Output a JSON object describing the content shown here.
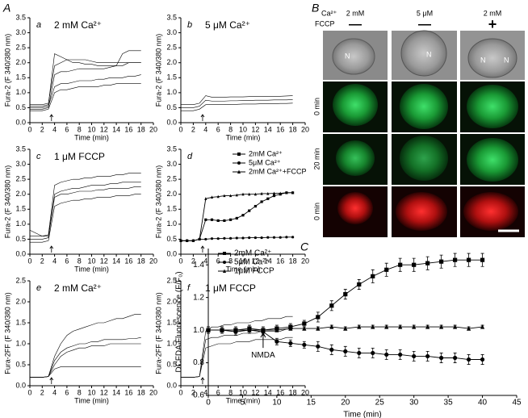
{
  "figure_labels": [
    "A",
    "B",
    "C"
  ],
  "micrograph": {
    "ca_label": "Ca²⁺",
    "conditions": [
      "2 mM",
      "5 μM",
      "2 mM"
    ],
    "fccp_label": "FCCP",
    "fccp": [
      "—",
      "—",
      "+"
    ],
    "row_labels": [
      "0 min",
      "20 min",
      "0 min"
    ],
    "nuclei": [
      "N",
      "N",
      "N",
      "N"
    ]
  },
  "chart_data": [
    {
      "type": "line",
      "label": "a",
      "title": "2 mM Ca²⁺",
      "x_label": "Time (min)",
      "y_label": "Fura-2 (F 340/380 nm)",
      "x": [
        0,
        1,
        2,
        3,
        4,
        5,
        6,
        7,
        8,
        9,
        10,
        11,
        12,
        13,
        14,
        15,
        16,
        17,
        18
      ],
      "xlim": [
        0,
        20
      ],
      "xticks": [
        0,
        2,
        4,
        6,
        8,
        10,
        12,
        14,
        16,
        18,
        20
      ],
      "ylim": [
        0,
        3.5
      ],
      "yticks": [
        {
          "value": 0,
          "label": "0.0"
        },
        0.5,
        {
          "value": 1,
          "label": "1.0"
        },
        1.5,
        {
          "value": 2,
          "label": "2.0"
        },
        2.5,
        {
          "value": 3,
          "label": "3.0"
        },
        3.5
      ],
      "series": [
        {
          "color": "#000000",
          "values": [
            0.45,
            0.45,
            0.45,
            0.5,
            1.6,
            1.7,
            1.7,
            1.75,
            1.8,
            1.8,
            1.8,
            1.8,
            1.8,
            1.85,
            1.9,
            1.9,
            2.0,
            2.0,
            2.0
          ]
        },
        {
          "color": "#000000",
          "values": [
            0.5,
            0.5,
            0.5,
            0.55,
            1.2,
            1.3,
            1.3,
            1.35,
            1.4,
            1.4,
            1.4,
            1.45,
            1.45,
            1.5,
            1.5,
            1.5,
            1.55,
            1.55,
            1.6
          ]
        },
        {
          "color": "#000000",
          "values": [
            0.55,
            0.55,
            0.55,
            0.6,
            2.3,
            2.2,
            2.1,
            2.0,
            2.0,
            1.95,
            1.95,
            1.9,
            1.9,
            1.9,
            1.9,
            2.3,
            2.4,
            2.4,
            2.4
          ]
        },
        {
          "color": "#000000",
          "values": [
            0.4,
            0.4,
            0.4,
            0.45,
            1.0,
            1.1,
            1.1,
            1.15,
            1.2,
            1.2,
            1.2,
            1.2,
            1.25,
            1.25,
            1.3,
            1.3,
            1.3,
            1.3,
            1.3
          ]
        },
        {
          "color": "#000000",
          "values": [
            0.6,
            0.6,
            0.6,
            0.65,
            1.9,
            2.0,
            2.1,
            2.1,
            2.1,
            2.1,
            2.05,
            2.0,
            2.0,
            2.0,
            2.0,
            2.0,
            2.0,
            2.0,
            2.0
          ]
        }
      ]
    },
    {
      "type": "line",
      "label": "b",
      "title": "5 μM Ca²⁺",
      "x_label": "Time (min)",
      "y_label": "Fura-2 (F 340/380 nm)",
      "x": [
        0,
        1,
        2,
        3,
        4,
        5,
        6,
        7,
        8,
        9,
        10,
        11,
        12,
        13,
        14,
        15,
        16,
        17,
        18
      ],
      "xlim": [
        0,
        20
      ],
      "xticks": [
        0,
        2,
        4,
        6,
        8,
        10,
        12,
        14,
        16,
        18,
        20
      ],
      "ylim": [
        0,
        3.5
      ],
      "yticks": [
        {
          "value": 0,
          "label": "0.0"
        },
        0.5,
        {
          "value": 1,
          "label": "1.0"
        },
        1.5,
        {
          "value": 2,
          "label": "2.0"
        },
        2.5,
        {
          "value": 3,
          "label": "3.0"
        },
        3.5
      ],
      "series": [
        {
          "color": "#000000",
          "values": [
            0.5,
            0.5,
            0.5,
            0.55,
            0.75,
            0.72,
            0.72,
            0.72,
            0.73,
            0.73,
            0.74,
            0.74,
            0.75,
            0.75,
            0.75,
            0.76,
            0.76,
            0.76,
            0.77
          ]
        },
        {
          "color": "#000000",
          "values": [
            0.6,
            0.6,
            0.6,
            0.65,
            0.9,
            0.85,
            0.85,
            0.85,
            0.86,
            0.86,
            0.86,
            0.87,
            0.87,
            0.87,
            0.88,
            0.88,
            0.88,
            0.89,
            0.9
          ]
        },
        {
          "color": "#000000",
          "values": [
            0.4,
            0.4,
            0.4,
            0.45,
            0.6,
            0.6,
            0.6,
            0.6,
            0.61,
            0.61,
            0.62,
            0.62,
            0.62,
            0.63,
            0.63,
            0.63,
            0.64,
            0.64,
            0.65
          ]
        }
      ]
    },
    {
      "type": "line",
      "label": "c",
      "title": "1 μM FCCP",
      "x_label": "Time (min)",
      "y_label": "Fura-2 (F 340/380 nm)",
      "x": [
        0,
        1,
        2,
        3,
        4,
        5,
        6,
        7,
        8,
        9,
        10,
        11,
        12,
        13,
        14,
        15,
        16,
        17,
        18
      ],
      "xlim": [
        0,
        20
      ],
      "xticks": [
        0,
        2,
        4,
        6,
        8,
        10,
        12,
        14,
        16,
        18,
        20
      ],
      "ylim": [
        0,
        3.5
      ],
      "yticks": [
        {
          "value": 0,
          "label": "0.0"
        },
        0.5,
        {
          "value": 1,
          "label": "1.0"
        },
        1.5,
        {
          "value": 2,
          "label": "2.0"
        },
        2.5,
        {
          "value": 3,
          "label": "3.0"
        },
        3.5
      ],
      "series": [
        {
          "color": "#000000",
          "values": [
            0.5,
            0.5,
            0.5,
            0.55,
            1.9,
            2.0,
            2.0,
            2.05,
            2.1,
            2.1,
            2.1,
            2.15,
            2.15,
            2.2,
            2.2,
            2.2,
            2.2,
            2.25,
            2.25
          ]
        },
        {
          "color": "#000000",
          "values": [
            0.4,
            0.4,
            0.4,
            0.45,
            1.6,
            1.7,
            1.75,
            1.8,
            1.8,
            1.85,
            1.85,
            1.9,
            1.9,
            1.9,
            1.95,
            1.95,
            1.95,
            2.0,
            2.0
          ]
        },
        {
          "color": "#000000",
          "values": [
            0.6,
            0.6,
            0.6,
            0.65,
            2.3,
            2.4,
            2.45,
            2.5,
            2.5,
            2.55,
            2.55,
            2.6,
            2.6,
            2.6,
            2.65,
            2.65,
            2.7,
            2.7,
            2.7
          ]
        },
        {
          "color": "#000000",
          "values": [
            0.8,
            0.7,
            0.6,
            0.6,
            2.0,
            2.1,
            2.15,
            2.2,
            2.2,
            2.25,
            2.3,
            2.3,
            2.3,
            2.35,
            2.35,
            2.4,
            2.4,
            2.4,
            2.4
          ]
        }
      ]
    },
    {
      "type": "line",
      "label": "d",
      "x_label": "Time (min)",
      "y_label": "Fura-2 (F 340/380 nm)",
      "legend": "upper right",
      "x": [
        0,
        1,
        2,
        3,
        4,
        5,
        6,
        7,
        8,
        9,
        10,
        11,
        12,
        13,
        14,
        15,
        16,
        17,
        18
      ],
      "xlim": [
        0,
        20
      ],
      "xticks": [
        0,
        2,
        4,
        6,
        8,
        10,
        12,
        14,
        16,
        18,
        20
      ],
      "ylim": [
        0,
        3.5
      ],
      "yticks": [
        {
          "value": 0,
          "label": "0.0"
        },
        0.5,
        {
          "value": 1,
          "label": "1.0"
        },
        1.5,
        {
          "value": 2,
          "label": "2.0"
        },
        2.5,
        {
          "value": 3,
          "label": "3.0"
        },
        3.5
      ],
      "series": [
        {
          "name": "2mM Ca²⁺",
          "color": "#000000",
          "marker": "square",
          "values": [
            0.45,
            0.45,
            0.45,
            0.5,
            1.15,
            1.15,
            1.12,
            1.12,
            1.15,
            1.2,
            1.3,
            1.45,
            1.6,
            1.75,
            1.85,
            1.95,
            2.0,
            2.05,
            2.05
          ]
        },
        {
          "name": "5μM Ca²⁺",
          "color": "#000000",
          "marker": "circle",
          "values": [
            0.45,
            0.45,
            0.45,
            0.5,
            0.5,
            0.52,
            0.52,
            0.53,
            0.53,
            0.54,
            0.54,
            0.55,
            0.55,
            0.55,
            0.56,
            0.56,
            0.56,
            0.57,
            0.57
          ]
        },
        {
          "name": "2mM Ca²⁺+FCCP",
          "color": "#000000",
          "marker": "triangle",
          "values": [
            0.45,
            0.45,
            0.45,
            0.5,
            1.85,
            1.9,
            1.92,
            1.95,
            1.95,
            1.97,
            2.0,
            2.0,
            2.0,
            2.02,
            2.02,
            2.03,
            2.03,
            2.05,
            2.05
          ]
        }
      ]
    },
    {
      "type": "line",
      "label": "e",
      "title": "2 mM Ca²⁺",
      "x_label": "Time (min)",
      "y_label": "Fura-2FF (F 340/380 nm)",
      "x": [
        0,
        1,
        2,
        3,
        4,
        5,
        6,
        7,
        8,
        9,
        10,
        11,
        12,
        13,
        14,
        15,
        16,
        17,
        18
      ],
      "xlim": [
        0,
        20
      ],
      "xticks": [
        0,
        2,
        4,
        6,
        8,
        10,
        12,
        14,
        16,
        18,
        20
      ],
      "ylim": [
        0,
        2.5
      ],
      "yticks": [
        {
          "value": 0,
          "label": "0.0"
        },
        0.5,
        {
          "value": 1,
          "label": "1.0"
        },
        1.5,
        {
          "value": 2,
          "label": "2.0"
        },
        2.5
      ],
      "series": [
        {
          "color": "#000000",
          "values": [
            0.2,
            0.2,
            0.2,
            0.22,
            0.6,
            0.8,
            0.9,
            0.95,
            1.0,
            1.0,
            1.05,
            1.05,
            1.1,
            1.1,
            1.1,
            1.1,
            1.12,
            1.12,
            1.15
          ]
        },
        {
          "color": "#000000",
          "values": [
            0.2,
            0.2,
            0.2,
            0.22,
            0.7,
            1.0,
            1.2,
            1.3,
            1.35,
            1.4,
            1.45,
            1.5,
            1.5,
            1.55,
            1.6,
            1.6,
            1.65,
            1.7,
            1.7
          ]
        },
        {
          "color": "#000000",
          "values": [
            0.2,
            0.2,
            0.2,
            0.22,
            0.5,
            0.7,
            0.8,
            0.85,
            0.9,
            0.9,
            0.95,
            0.95,
            0.95,
            1.0,
            1.0,
            1.0,
            1.0,
            1.0,
            1.0
          ]
        },
        {
          "color": "#000000",
          "values": [
            0.2,
            0.2,
            0.2,
            0.22,
            0.4,
            0.45,
            0.45,
            0.45,
            0.45,
            0.45,
            0.45,
            0.45,
            0.45,
            0.45,
            0.45,
            0.45,
            0.45,
            0.45,
            0.45
          ]
        }
      ]
    },
    {
      "type": "line",
      "label": "f",
      "title": "1 μM FCCP",
      "x_label": "Time (min)",
      "y_label": "Fura-2FF (F 340/380 nm)",
      "x": [
        0,
        1,
        2,
        3,
        4,
        5,
        6,
        7,
        8,
        9,
        10,
        11,
        12,
        13,
        14,
        15,
        16,
        17,
        18
      ],
      "xlim": [
        0,
        20
      ],
      "xticks": [
        0,
        2,
        4,
        6,
        8,
        10,
        12,
        14,
        16,
        18,
        20
      ],
      "ylim": [
        0,
        2.5
      ],
      "yticks": [
        {
          "value": 0,
          "label": "0.0"
        },
        0.5,
        {
          "value": 1,
          "label": "1.0"
        },
        1.5,
        {
          "value": 2,
          "label": "2.0"
        },
        2.5
      ],
      "series": [
        {
          "color": "#000000",
          "values": [
            0.2,
            0.2,
            0.2,
            0.22,
            1.1,
            1.15,
            1.15,
            1.2,
            1.2,
            1.2,
            1.25,
            1.25,
            1.25,
            1.3,
            1.3,
            1.3,
            1.3,
            1.35,
            1.35
          ]
        },
        {
          "color": "#000000",
          "values": [
            0.2,
            0.2,
            0.2,
            0.22,
            1.3,
            1.4,
            1.4,
            1.45,
            1.45,
            1.5,
            1.5,
            1.5,
            1.55,
            1.55,
            1.6,
            1.6,
            1.6,
            1.65,
            1.65
          ]
        },
        {
          "color": "#000000",
          "values": [
            0.2,
            0.2,
            0.2,
            0.22,
            0.9,
            0.95,
            1.0,
            1.0,
            1.0,
            1.05,
            1.05,
            1.05,
            1.1,
            1.1,
            1.1,
            1.1,
            1.1,
            1.15,
            1.15
          ]
        }
      ]
    },
    {
      "type": "line",
      "x_label": "Time (min)",
      "y_label": "DCFDA Fluorescence (F/F₀)",
      "legend": "upper left",
      "annotation": "NMDA",
      "annotation_x": 8,
      "x": [
        0,
        2,
        4,
        6,
        8,
        10,
        12,
        14,
        16,
        18,
        20,
        22,
        24,
        26,
        28,
        30,
        32,
        34,
        36,
        38,
        40
      ],
      "xlim": [
        0,
        45
      ],
      "xticks": [
        0,
        5,
        10,
        15,
        20,
        25,
        30,
        35,
        40,
        45
      ],
      "ylim": [
        0.6,
        1.5
      ],
      "yticks": [
        0.6,
        0.8,
        {
          "value": 1,
          "label": "1.0"
        },
        1.2,
        1.4
      ],
      "series": [
        {
          "name": "2mM Ca²⁺",
          "color": "#000000",
          "marker": "square",
          "values": [
            1.0,
            1.0,
            1.0,
            1.01,
            1.0,
            1.01,
            1.02,
            1.04,
            1.08,
            1.15,
            1.22,
            1.28,
            1.33,
            1.37,
            1.4,
            1.4,
            1.41,
            1.42,
            1.43,
            1.43,
            1.43
          ],
          "errors": [
            0.02,
            0.02,
            0.02,
            0.02,
            0.02,
            0.02,
            0.02,
            0.02,
            0.03,
            0.03,
            0.03,
            0.03,
            0.04,
            0.04,
            0.04,
            0.04,
            0.04,
            0.04,
            0.04,
            0.04,
            0.04
          ]
        },
        {
          "name": "5μM Ca²⁺",
          "color": "#000000",
          "marker": "circle",
          "values": [
            1.0,
            1.0,
            0.99,
            1.0,
            0.99,
            0.93,
            0.92,
            0.91,
            0.9,
            0.88,
            0.87,
            0.86,
            0.86,
            0.85,
            0.85,
            0.84,
            0.84,
            0.83,
            0.83,
            0.82,
            0.82
          ],
          "errors": [
            0.02,
            0.02,
            0.02,
            0.02,
            0.02,
            0.02,
            0.02,
            0.02,
            0.03,
            0.03,
            0.03,
            0.03,
            0.03,
            0.03,
            0.03,
            0.03,
            0.03,
            0.03,
            0.03,
            0.03,
            0.03
          ]
        },
        {
          "name": "1μM FCCP",
          "color": "#000000",
          "marker": "triangle",
          "values": [
            1.0,
            1.0,
            1.0,
            1.0,
            1.0,
            1.0,
            1.01,
            1.01,
            1.01,
            1.02,
            1.01,
            1.02,
            1.02,
            1.02,
            1.02,
            1.02,
            1.02,
            1.02,
            1.02,
            1.01,
            1.02
          ],
          "errors": [
            0.01,
            0.01,
            0.01,
            0.01,
            0.01,
            0.01,
            0.01,
            0.01,
            0.01,
            0.01,
            0.01,
            0.01,
            0.01,
            0.01,
            0.01,
            0.01,
            0.01,
            0.01,
            0.01,
            0.01,
            0.01
          ]
        }
      ]
    }
  ]
}
